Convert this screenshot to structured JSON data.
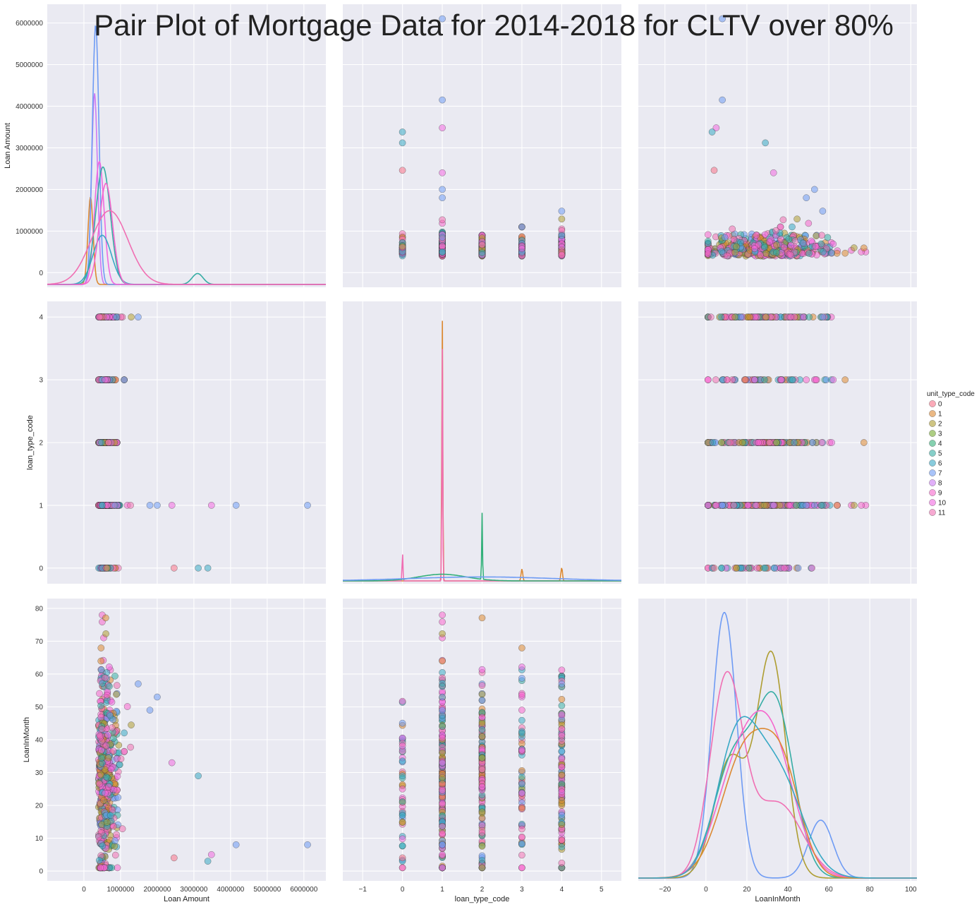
{
  "chart_data": {
    "type": "scatter",
    "title": "Pair Plot of Mortgage Data for 2014-2018 for CLTV over 80%",
    "hue": "unit_type_code",
    "hue_levels": [
      "0",
      "1",
      "2",
      "3",
      "4",
      "5",
      "6",
      "7",
      "8",
      "9",
      "10",
      "11"
    ],
    "colors": [
      "#f77189",
      "#dc8932",
      "#ae9d31",
      "#77ab31",
      "#33b07a",
      "#36ada4",
      "#38a9c5",
      "#6e9bf4",
      "#cc7af4",
      "#f565cc",
      "#f068e0",
      "#f06fb3"
    ],
    "variables": [
      "Loan Amount",
      "loan_type_code",
      "LoanInMonth"
    ],
    "legend_placement": "right",
    "grid": true,
    "axes": {
      "Loan Amount": {
        "range": [
          -1000000,
          6600000
        ],
        "ticks": [
          0,
          1000000,
          2000000,
          3000000,
          4000000,
          5000000,
          6000000
        ],
        "tick_labels": [
          "0",
          "1000000",
          "2000000",
          "3000000",
          "4000000",
          "5000000",
          "6000000"
        ]
      },
      "loan_type_code": {
        "range": [
          -1.5,
          5.5
        ],
        "ticks": [
          -1,
          0,
          1,
          2,
          3,
          4,
          5
        ],
        "tick_labels": [
          "−1",
          "0",
          "1",
          "2",
          "3",
          "4",
          "5"
        ],
        "row_ticks": [
          0,
          1,
          2,
          3,
          4
        ],
        "row_range": [
          -0.25,
          4.25
        ]
      },
      "LoanInMonth": {
        "range": [
          -33,
          103
        ],
        "ticks": [
          -20,
          0,
          20,
          40,
          60,
          80,
          100
        ],
        "tick_labels": [
          "−20",
          "0",
          "20",
          "40",
          "60",
          "80",
          "100"
        ],
        "row_ticks": [
          0,
          10,
          20,
          30,
          40,
          50,
          60,
          70,
          80
        ],
        "row_range": [
          -3,
          83
        ]
      }
    },
    "loan_amount_scatter_outliers": [
      {
        "loan_type_code": 1,
        "loan_amount": 6100000,
        "loan_in_month": 8,
        "hue": "7"
      },
      {
        "loan_type_code": 1,
        "loan_amount": 4150000,
        "loan_in_month": 8,
        "hue": "7"
      },
      {
        "loan_type_code": 1,
        "loan_amount": 3480000,
        "loan_in_month": 5,
        "hue": "10"
      },
      {
        "loan_type_code": 0,
        "loan_amount": 3380000,
        "loan_in_month": 3,
        "hue": "6"
      },
      {
        "loan_type_code": 0,
        "loan_amount": 3120000,
        "loan_in_month": 29,
        "hue": "6"
      },
      {
        "loan_type_code": 0,
        "loan_amount": 2460000,
        "loan_in_month": 4,
        "hue": "0"
      },
      {
        "loan_type_code": 1,
        "loan_amount": 2400000,
        "loan_in_month": 33,
        "hue": "10"
      },
      {
        "loan_type_code": 1,
        "loan_amount": 2000000,
        "loan_in_month": 53,
        "hue": "7"
      },
      {
        "loan_type_code": 1,
        "loan_amount": 1800000,
        "loan_in_month": 49,
        "hue": "7"
      },
      {
        "loan_type_code": 4,
        "loan_amount": 1480000,
        "loan_in_month": 57,
        "hue": "7"
      }
    ],
    "loan_in_month_kde_peaks": [
      {
        "hue": "8",
        "peak_x": 9,
        "second_peak_x": 56
      },
      {
        "hue": "2",
        "peak_x": 32
      },
      {
        "hue": "6",
        "peak_x": 34
      },
      {
        "hue": "11",
        "peak_x": 10
      },
      {
        "hue": "9",
        "peak_x": 30
      }
    ]
  }
}
